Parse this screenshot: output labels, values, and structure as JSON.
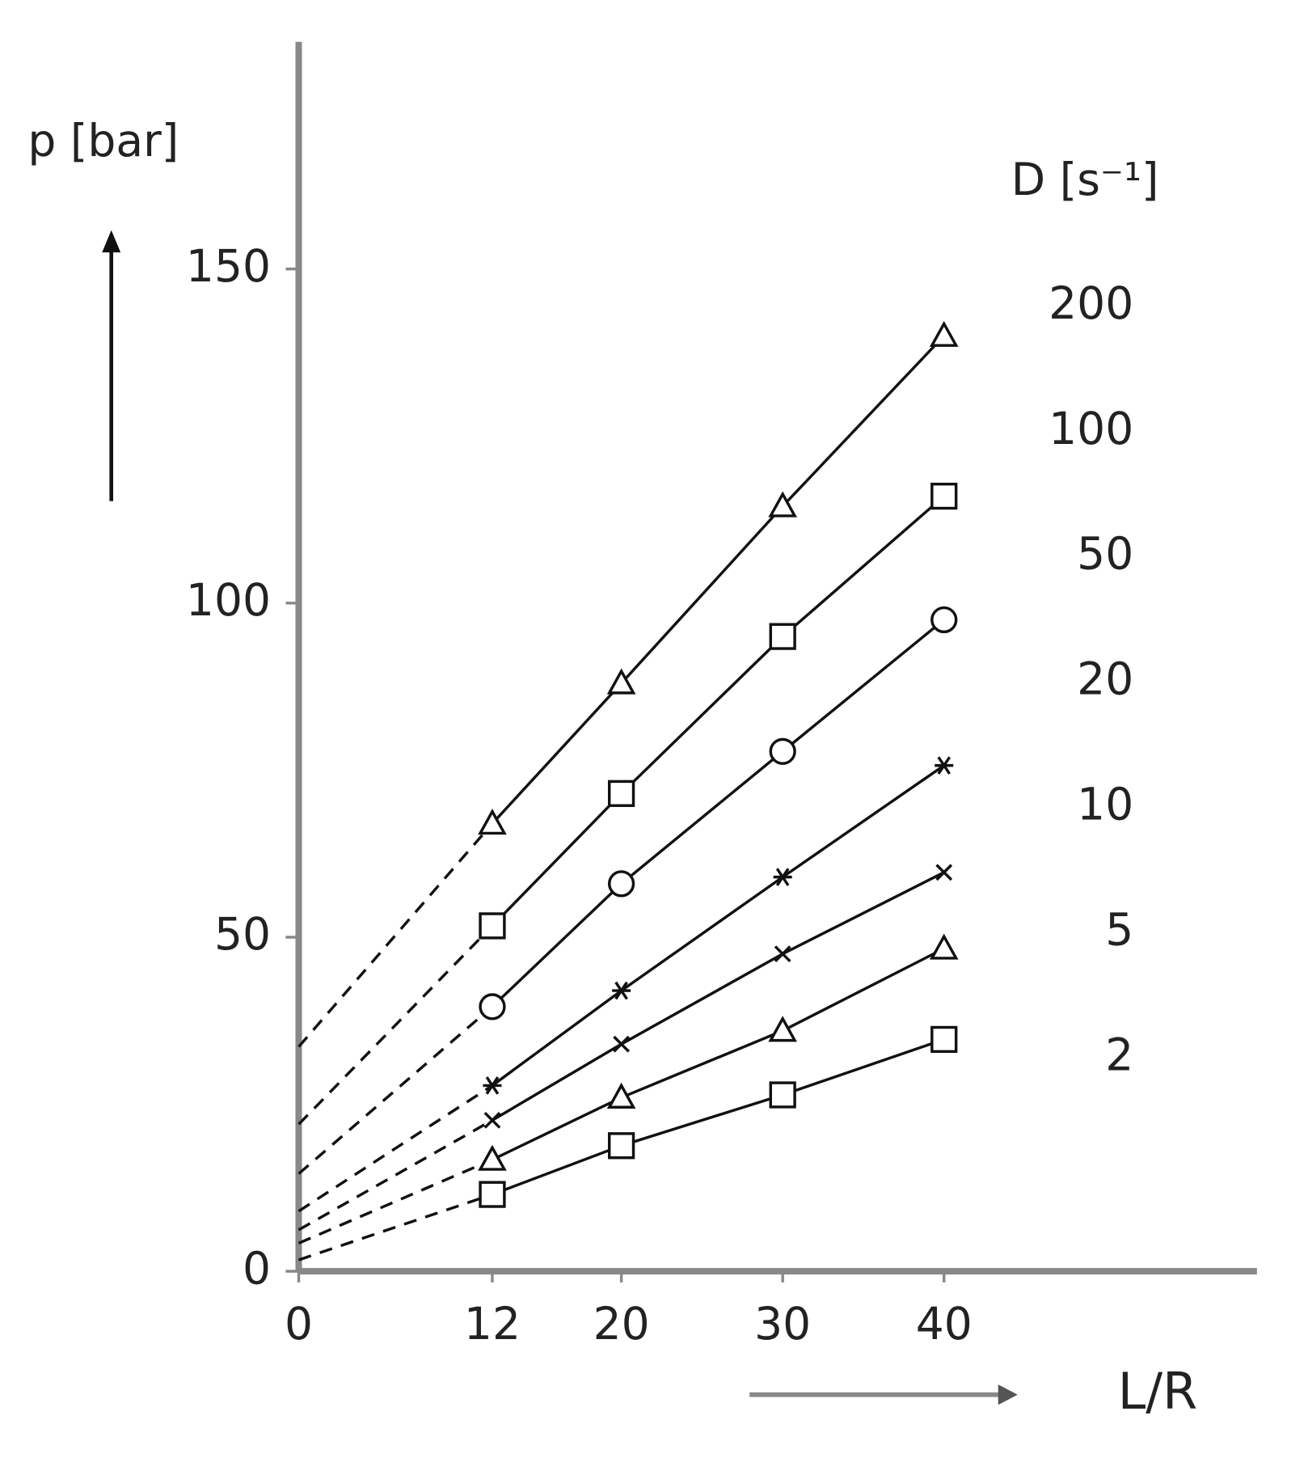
{
  "chart_data": {
    "type": "line",
    "y_label": "p [bar]",
    "x_label": "L/R",
    "legend_title": "D [s⁻¹]",
    "x": [
      12,
      20,
      30,
      40
    ],
    "xlim": [
      0,
      59.4
    ],
    "ylim": [
      0,
      184
    ],
    "xticks": [
      0,
      12,
      20,
      30,
      40
    ],
    "yticks": [
      0,
      50,
      100,
      150
    ],
    "color": "#111111",
    "axis_color": "#888888",
    "series": [
      {
        "name": "200",
        "marker": "triangle",
        "intercept": 33.6,
        "values": [
          67,
          88,
          114.5,
          140
        ]
      },
      {
        "name": "100",
        "marker": "square",
        "intercept": 22,
        "values": [
          51.7,
          71.5,
          95,
          116
        ]
      },
      {
        "name": "50",
        "marker": "circle",
        "intercept": 14.6,
        "values": [
          39.6,
          58,
          77.8,
          97.5
        ]
      },
      {
        "name": "20",
        "marker": "asterisk",
        "intercept": 9,
        "values": [
          27.8,
          42,
          59,
          75.7
        ]
      },
      {
        "name": "10",
        "marker": "x",
        "intercept": 6.2,
        "values": [
          22.6,
          34,
          47.5,
          59.7
        ]
      },
      {
        "name": "5",
        "marker": "triangle",
        "intercept": 4.2,
        "values": [
          16.7,
          26,
          36,
          48.3
        ]
      },
      {
        "name": "2",
        "marker": "square",
        "intercept": 1.7,
        "values": [
          11.5,
          18.8,
          26.4,
          34.7
        ]
      }
    ]
  }
}
